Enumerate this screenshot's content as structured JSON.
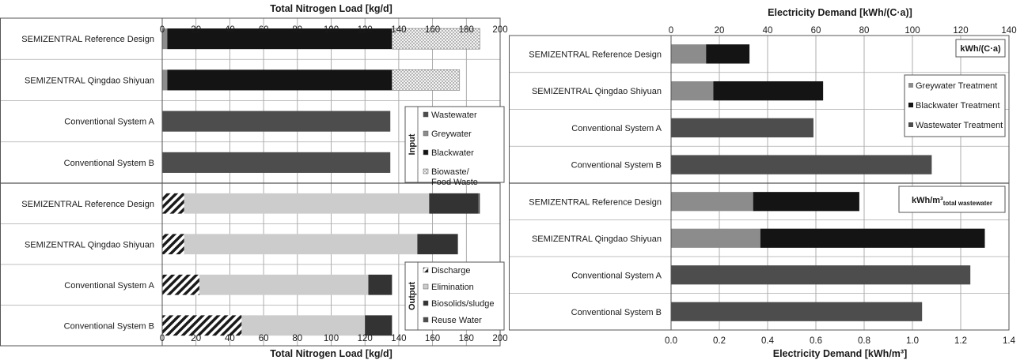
{
  "chart_data": [
    {
      "id": "nitrogen",
      "type": "bar",
      "orientation": "horizontal",
      "stacked": true,
      "xlabel": "Total Nitrogen Load [kg/d]",
      "xlim": [
        0,
        200
      ],
      "xticks": [
        "0",
        "20",
        "40",
        "60",
        "80",
        "100",
        "120",
        "140",
        "160",
        "180",
        "200"
      ],
      "grid": true,
      "panels": [
        {
          "id": "input",
          "categories": [
            "SEMIZENTRAL Reference Design",
            "SEMIZENTRAL Qingdao Shiyuan",
            "Conventional System A",
            "Conventional System B"
          ],
          "legend_title": "Input",
          "legend_position": "right",
          "series": [
            {
              "name": "Wastewater",
              "color": "#4d4d4d",
              "pattern": "solid",
              "values": [
                0,
                0,
                135,
                135
              ]
            },
            {
              "name": "Greywater",
              "color": "#8c8c8c",
              "pattern": "solid",
              "values": [
                3,
                3,
                0,
                0
              ]
            },
            {
              "name": "Blackwater",
              "color": "#141414",
              "pattern": "solid",
              "values": [
                133,
                133,
                0,
                0
              ]
            },
            {
              "name": "Biowaste/ Food Waste",
              "color": "#f2f2f2",
              "pattern": "dots",
              "values": [
                52,
                40,
                0,
                0
              ]
            }
          ]
        },
        {
          "id": "output",
          "categories": [
            "SEMIZENTRAL Reference Design",
            "SEMIZENTRAL Qingdao Shiyuan",
            "Conventional System A",
            "Conventional System B"
          ],
          "legend_title": "Output",
          "legend_position": "right",
          "series": [
            {
              "name": "Discharge",
              "color": "#1a1a1a",
              "pattern": "hatch",
              "values": [
                13,
                13,
                22,
                47
              ]
            },
            {
              "name": "Elimination",
              "color": "#cccccc",
              "pattern": "solid",
              "values": [
                145,
                138,
                100,
                73
              ]
            },
            {
              "name": "Biosolids/sludge",
              "color": "#333333",
              "pattern": "solid",
              "values": [
                29,
                24,
                14,
                16
              ]
            },
            {
              "name": "Reuse Water",
              "color": "#4d4d4d",
              "pattern": "solid",
              "values": [
                1,
                0,
                0,
                0
              ]
            }
          ]
        }
      ]
    },
    {
      "id": "electricity",
      "type": "bar",
      "orientation": "horizontal",
      "stacked": true,
      "grid": true,
      "legend_position": "right",
      "legend": [
        {
          "name": "Greywater Treatment",
          "color": "#8c8c8c"
        },
        {
          "name": "Blackwater Treatment",
          "color": "#141414"
        },
        {
          "name": "Wastewater Treatment",
          "color": "#4d4d4d"
        }
      ],
      "panels": [
        {
          "id": "per_capita",
          "xlabel": "Electricity Demand [kWh/(C·a)]",
          "xlim": [
            0,
            140
          ],
          "xticks": [
            "0",
            "20",
            "40",
            "60",
            "80",
            "100",
            "120",
            "140"
          ],
          "unit_box": "kWh/(C·a)",
          "categories": [
            "SEMIZENTRAL Reference Design",
            "SEMIZENTRAL Qingdao Shiyuan",
            "Conventional System A",
            "Conventional System B"
          ],
          "series": [
            {
              "name": "Greywater Treatment",
              "values": [
                14.5,
                17.5,
                0,
                0
              ]
            },
            {
              "name": "Blackwater Treatment",
              "values": [
                18,
                45.5,
                0,
                0
              ]
            },
            {
              "name": "Wastewater Treatment",
              "values": [
                0,
                0,
                59,
                108
              ]
            }
          ]
        },
        {
          "id": "per_m3",
          "xlabel": "Electricity Demand [kWh/m³]",
          "xlim": [
            0,
            1.4
          ],
          "xticks": [
            "0.0",
            "0.2",
            "0.4",
            "0.6",
            "0.8",
            "1.0",
            "1.2",
            "1.4"
          ],
          "unit_box_main": "kWh/m³",
          "unit_box_sub": "total wastewater",
          "categories": [
            "SEMIZENTRAL Reference Design",
            "SEMIZENTRAL Qingdao Shiyuan",
            "Conventional System A",
            "Conventional System B"
          ],
          "series": [
            {
              "name": "Greywater Treatment",
              "values": [
                0.34,
                0.37,
                0,
                0
              ]
            },
            {
              "name": "Blackwater Treatment",
              "values": [
                0.44,
                0.93,
                0,
                0
              ]
            },
            {
              "name": "Wastewater Treatment",
              "values": [
                0,
                0,
                1.24,
                1.04
              ]
            }
          ]
        }
      ]
    }
  ]
}
